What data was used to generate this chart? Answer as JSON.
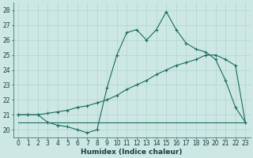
{
  "xlabel": "Humidex (Indice chaleur)",
  "xlim": [
    -0.5,
    23.5
  ],
  "ylim": [
    19.5,
    28.5
  ],
  "yticks": [
    20,
    21,
    22,
    23,
    24,
    25,
    26,
    27,
    28
  ],
  "xticks": [
    0,
    1,
    2,
    3,
    4,
    5,
    6,
    7,
    8,
    9,
    10,
    11,
    12,
    13,
    14,
    15,
    16,
    17,
    18,
    19,
    20,
    21,
    22,
    23
  ],
  "background_color": "#cde8e4",
  "grid_color": "#b0d4ce",
  "line_color": "#1a6b5a",
  "line1_y": [
    21.0,
    21.0,
    21.0,
    20.5,
    20.3,
    20.2,
    20.0,
    19.8,
    20.0,
    22.8,
    25.0,
    26.5,
    26.7,
    26.0,
    26.7,
    27.9,
    26.7,
    25.8,
    25.4,
    25.2,
    24.7,
    23.3,
    21.5,
    20.5
  ],
  "line2_y": [
    20.5,
    20.5,
    20.5,
    20.5,
    20.5,
    20.5,
    20.5,
    20.5,
    20.5,
    20.5,
    20.5,
    20.5,
    20.5,
    20.5,
    20.5,
    20.5,
    20.5,
    20.5,
    20.5,
    20.5,
    20.5,
    20.5,
    20.5,
    20.5
  ],
  "line3_y": [
    21.0,
    21.0,
    21.0,
    21.1,
    21.2,
    21.3,
    21.5,
    21.6,
    21.8,
    22.0,
    22.3,
    22.7,
    23.0,
    23.3,
    23.7,
    24.0,
    24.3,
    24.5,
    24.7,
    25.0,
    25.0,
    24.7,
    24.3,
    20.5
  ]
}
